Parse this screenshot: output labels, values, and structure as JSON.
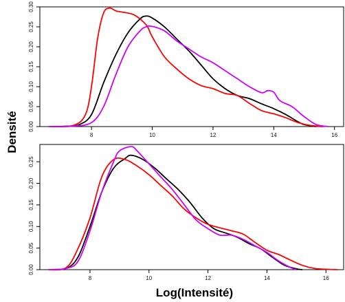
{
  "chart_data": {
    "ylabel": "Densité",
    "xlabel": "Log(Intensité)",
    "panels": [
      {
        "type": "line",
        "xlim": [
          6.3,
          16.3
        ],
        "ylim": [
          0,
          0.3
        ],
        "x_ticks": [
          8,
          10,
          12,
          14,
          16
        ],
        "y_ticks": [
          0.0,
          0.05,
          0.1,
          0.15,
          0.2,
          0.25,
          0.3
        ],
        "y_tick_labels": [
          "0.00",
          "0.05",
          "0.10",
          "0.15",
          "0.20",
          "0.25",
          "0.30"
        ],
        "series": [
          {
            "color": "#000000",
            "x": [
              6.6,
              7.2,
              7.6,
              8.0,
              8.4,
              8.8,
              9.2,
              9.6,
              9.8,
              10.0,
              10.4,
              10.8,
              11.2,
              11.6,
              12.0,
              12.4,
              12.8,
              13.2,
              13.6,
              14.0,
              14.4,
              14.8,
              15.0,
              15.4
            ],
            "y": [
              0.0,
              0.001,
              0.005,
              0.03,
              0.11,
              0.18,
              0.235,
              0.27,
              0.277,
              0.272,
              0.25,
              0.22,
              0.19,
              0.155,
              0.12,
              0.095,
              0.078,
              0.07,
              0.057,
              0.045,
              0.03,
              0.012,
              0.005,
              0.0
            ]
          },
          {
            "color": "#ff0000",
            "x": [
              6.6,
              7.4,
              7.8,
              8.0,
              8.2,
              8.4,
              8.6,
              8.8,
              9.0,
              9.4,
              9.8,
              10.0,
              10.4,
              10.8,
              11.2,
              11.6,
              12.0,
              12.4,
              12.8,
              13.2,
              13.6,
              14.0,
              14.4,
              14.8,
              15.2,
              15.6
            ],
            "y": [
              0.0,
              0.003,
              0.03,
              0.1,
              0.22,
              0.285,
              0.297,
              0.29,
              0.287,
              0.28,
              0.255,
              0.225,
              0.175,
              0.145,
              0.12,
              0.103,
              0.095,
              0.083,
              0.078,
              0.058,
              0.04,
              0.032,
              0.022,
              0.01,
              0.003,
              0.0
            ]
          },
          {
            "color": "#cc00ff",
            "x": [
              6.6,
              7.4,
              8.0,
              8.4,
              8.8,
              9.2,
              9.6,
              9.8,
              10.0,
              10.4,
              10.8,
              11.2,
              11.6,
              12.0,
              12.4,
              12.8,
              13.2,
              13.6,
              13.8,
              14.0,
              14.2,
              14.6,
              15.0,
              15.4,
              15.8
            ],
            "y": [
              0.0,
              0.001,
              0.01,
              0.05,
              0.13,
              0.2,
              0.24,
              0.25,
              0.251,
              0.24,
              0.215,
              0.195,
              0.175,
              0.16,
              0.14,
              0.12,
              0.1,
              0.085,
              0.09,
              0.086,
              0.065,
              0.05,
              0.025,
              0.005,
              0.0
            ]
          }
        ]
      },
      {
        "type": "line",
        "xlim": [
          6.3,
          16.6
        ],
        "ylim": [
          0,
          0.29
        ],
        "x_ticks": [
          8,
          10,
          12,
          14,
          16
        ],
        "y_ticks": [
          0.0,
          0.05,
          0.1,
          0.15,
          0.2,
          0.25
        ],
        "y_tick_labels": [
          "0.00",
          "0.05",
          "0.10",
          "0.15",
          "0.20",
          "0.25"
        ],
        "series": [
          {
            "color": "#000000",
            "x": [
              6.6,
              7.2,
              7.6,
              8.0,
              8.4,
              8.8,
              9.2,
              9.4,
              9.8,
              10.2,
              10.6,
              11.0,
              11.4,
              11.8,
              12.2,
              12.6,
              13.0,
              13.4,
              13.8,
              14.2,
              14.6,
              15.0,
              15.2
            ],
            "y": [
              0.0,
              0.003,
              0.03,
              0.1,
              0.18,
              0.235,
              0.258,
              0.265,
              0.255,
              0.235,
              0.21,
              0.185,
              0.155,
              0.12,
              0.095,
              0.085,
              0.075,
              0.06,
              0.048,
              0.028,
              0.01,
              0.002,
              0.0
            ]
          },
          {
            "color": "#ff0000",
            "x": [
              6.6,
              7.2,
              7.6,
              8.0,
              8.4,
              8.8,
              9.2,
              9.6,
              10.0,
              10.4,
              10.8,
              11.2,
              11.6,
              12.0,
              12.4,
              12.8,
              13.2,
              13.6,
              14.0,
              14.4,
              14.8,
              15.2,
              15.6,
              16.0,
              16.4
            ],
            "y": [
              0.0,
              0.005,
              0.05,
              0.12,
              0.215,
              0.255,
              0.255,
              0.24,
              0.22,
              0.195,
              0.17,
              0.14,
              0.12,
              0.105,
              0.097,
              0.09,
              0.082,
              0.063,
              0.045,
              0.035,
              0.022,
              0.01,
              0.003,
              0.001,
              0.0
            ]
          },
          {
            "color": "#cc00ff",
            "x": [
              6.6,
              7.2,
              7.6,
              8.0,
              8.4,
              8.8,
              9.0,
              9.4,
              9.6,
              10.0,
              10.4,
              10.8,
              11.2,
              11.6,
              12.0,
              12.4,
              12.8,
              13.2,
              13.6,
              14.0,
              14.4,
              14.8,
              15.0
            ],
            "y": [
              0.0,
              0.003,
              0.02,
              0.09,
              0.18,
              0.25,
              0.275,
              0.285,
              0.275,
              0.245,
              0.215,
              0.185,
              0.15,
              0.115,
              0.095,
              0.08,
              0.08,
              0.07,
              0.055,
              0.04,
              0.02,
              0.005,
              0.0
            ]
          }
        ]
      }
    ]
  }
}
